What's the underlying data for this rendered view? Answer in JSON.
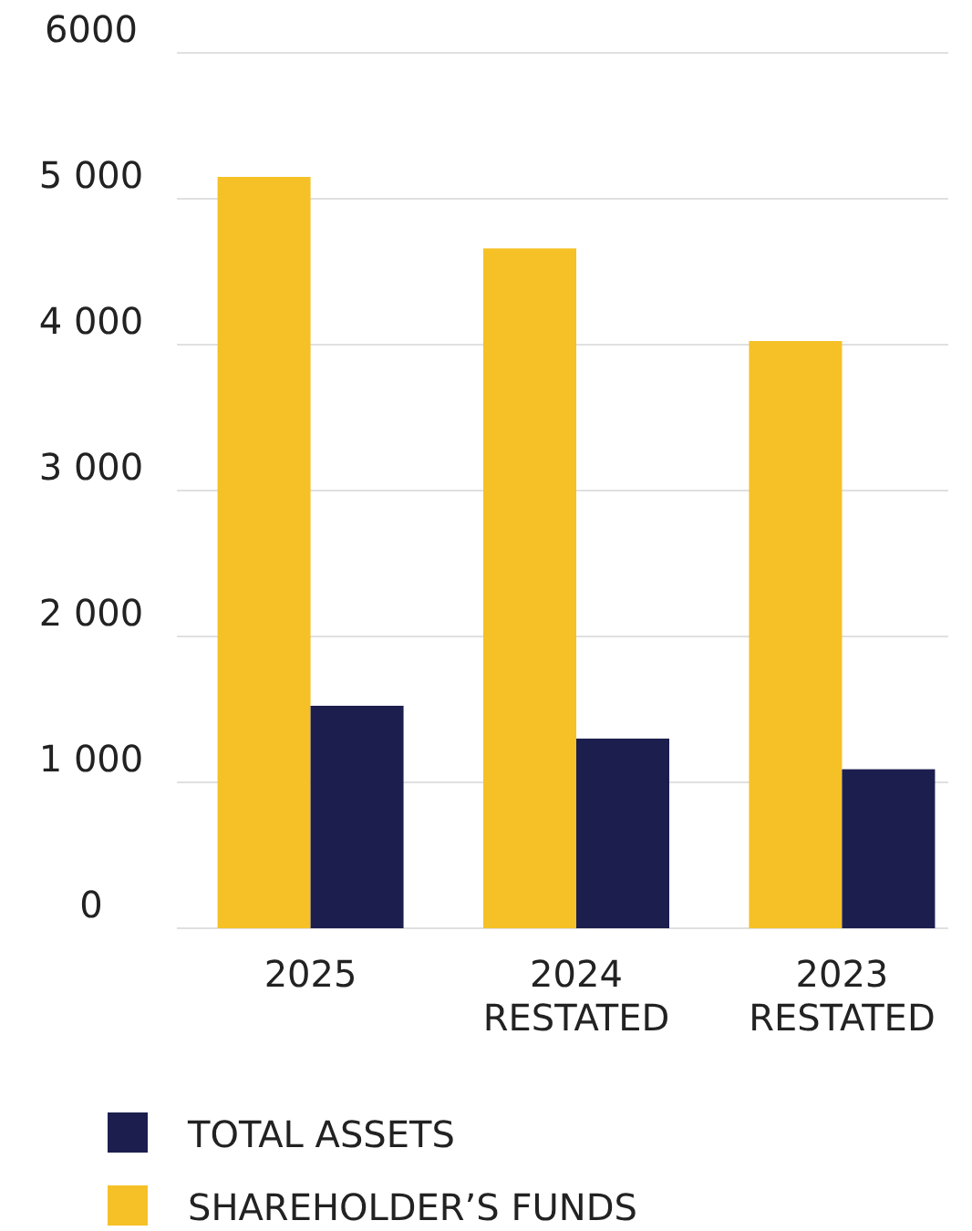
{
  "chart_data": {
    "type": "bar",
    "categories": [
      "2025",
      "2024\nRESTATED",
      "2023\nRESTATED"
    ],
    "series": [
      {
        "name": "SHAREHOLDER’S FUNDS",
        "color": "#f5c127",
        "values": [
          5150,
          4660,
          4025
        ]
      },
      {
        "name": "TOTAL ASSETS",
        "color": "#1c1f4e",
        "values": [
          1525,
          1300,
          1090
        ]
      }
    ],
    "ylim": [
      0,
      6000
    ],
    "yticks": [
      {
        "value": 0,
        "label": "0"
      },
      {
        "value": 1000,
        "label": "1 000"
      },
      {
        "value": 2000,
        "label": "2 000"
      },
      {
        "value": 3000,
        "label": "3 000"
      },
      {
        "value": 4000,
        "label": "4 000"
      },
      {
        "value": 5000,
        "label": "5 000"
      },
      {
        "value": 6000,
        "label": "6000"
      }
    ],
    "grid": "y",
    "legend": "bottom"
  }
}
